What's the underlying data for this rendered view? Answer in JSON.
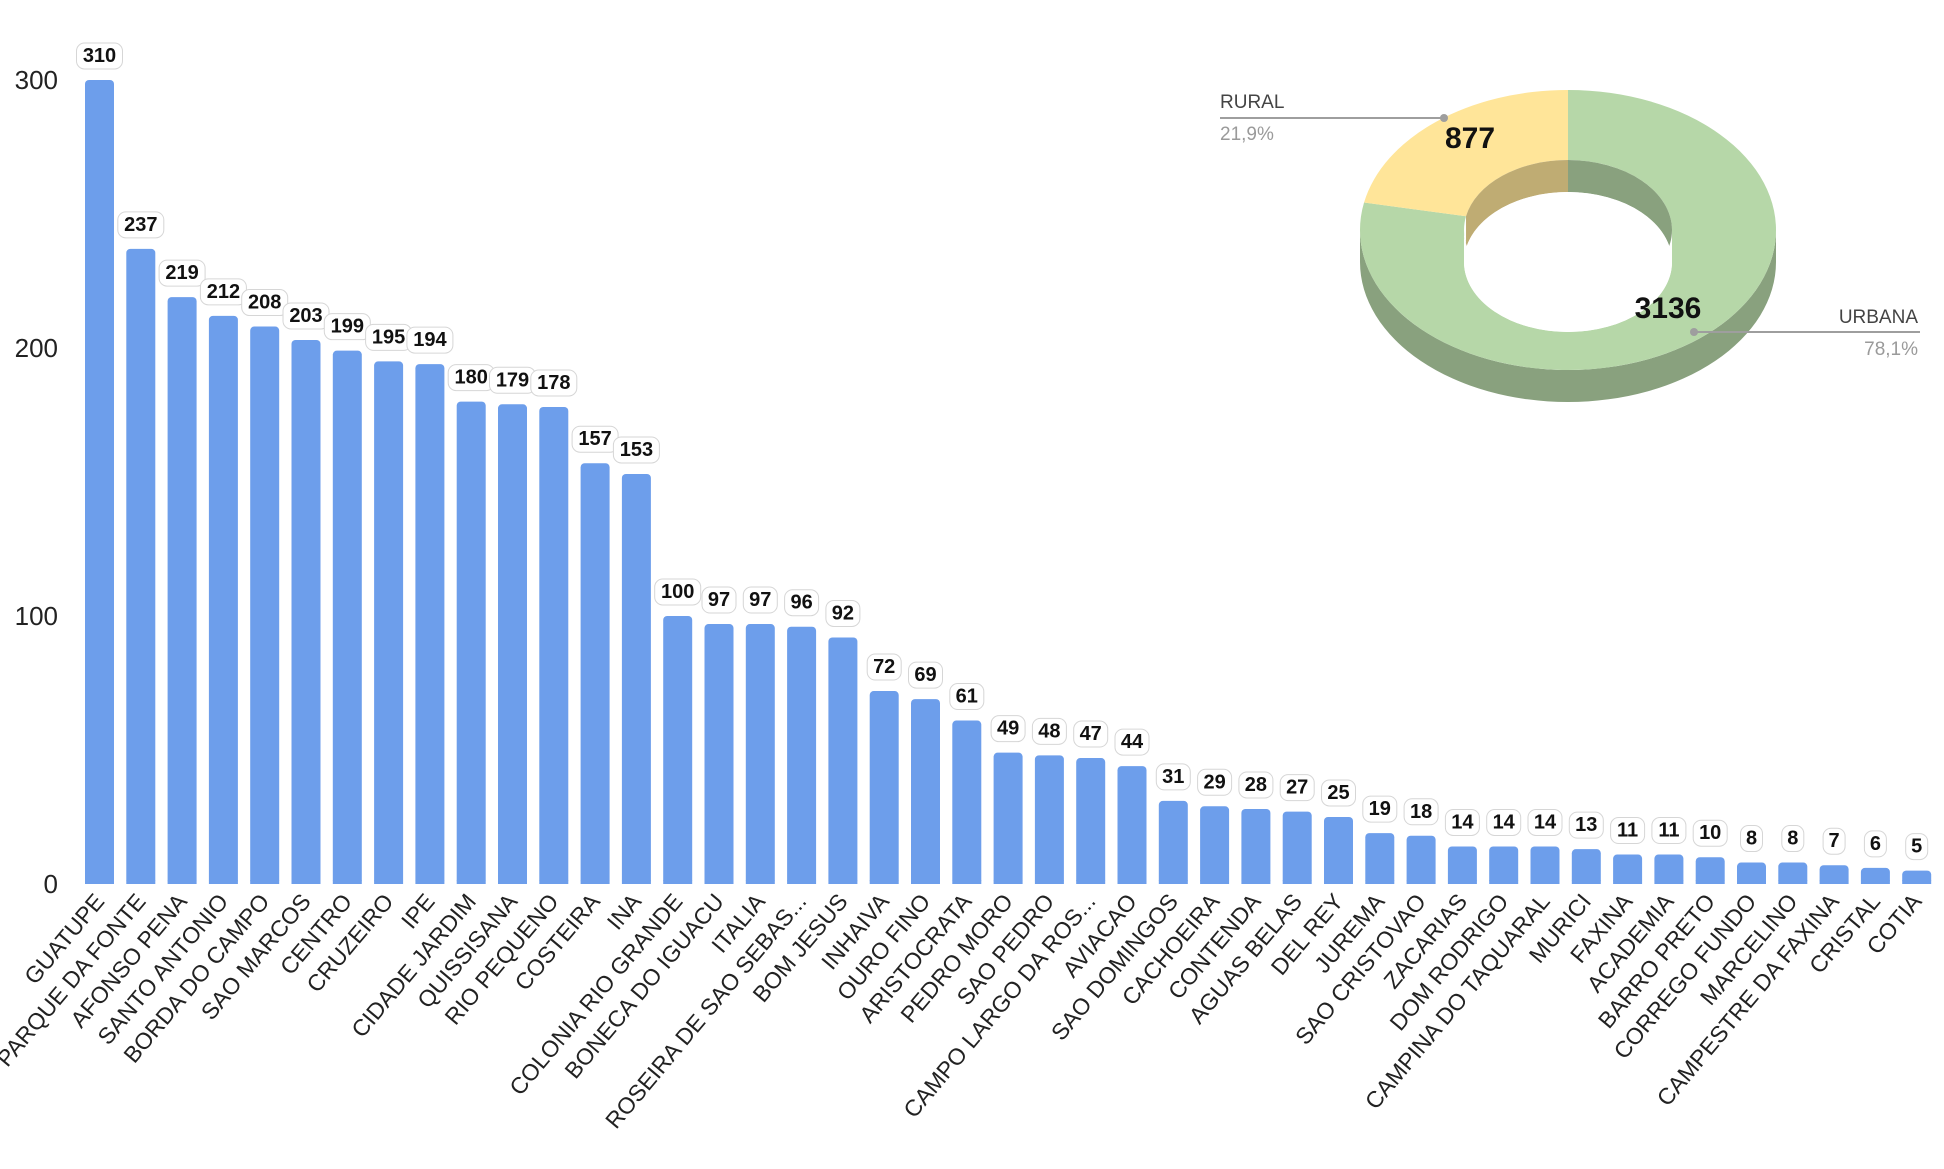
{
  "colors": {
    "bar": "#6d9eeb",
    "rural": "#ffe599",
    "rural_dark": "#bfac73",
    "urbana": "#b6d7a8",
    "urbana_dark": "#89a17e",
    "leader": "#9e9e9e"
  },
  "chart_data": [
    {
      "type": "bar",
      "ylim": [
        0,
        300
      ],
      "yticks": [
        0,
        100,
        200,
        300
      ],
      "grid": false,
      "categories": [
        "GUATUPE",
        "PARQUE DA FONTE",
        "AFONSO PENA",
        "SANTO ANTONIO",
        "BORDA DO CAMPO",
        "SAO MARCOS",
        "CENTRO",
        "CRUZEIRO",
        "IPE",
        "CIDADE JARDIM",
        "QUISSISANA",
        "RIO PEQUENO",
        "COSTEIRA",
        "INA",
        "COLONIA RIO GRANDE",
        "BONECA DO IGUACU",
        "ITALIA",
        "ROSEIRA DE SAO SEBAS...",
        "BOM JESUS",
        "INHAIVA",
        "OURO FINO",
        "ARISTOCRATA",
        "PEDRO MORO",
        "SAO PEDRO",
        "CAMPO LARGO DA ROS...",
        "AVIACAO",
        "SAO DOMINGOS",
        "CACHOEIRA",
        "CONTENDA",
        "AGUAS BELAS",
        "DEL REY",
        "JUREMA",
        "SAO CRISTOVAO",
        "ZACARIAS",
        "DOM RODRIGO",
        "CAMPINA DO TAQUARAL",
        "MURICI",
        "FAXINA",
        "ACADEMIA",
        "BARRO PRETO",
        "CORREGO FUNDO",
        "MARCELINO",
        "CAMPESTRE DA FAXINA",
        "CRISTAL",
        "COTIA"
      ],
      "values": [
        310,
        237,
        219,
        212,
        208,
        203,
        199,
        195,
        194,
        180,
        179,
        178,
        157,
        153,
        100,
        97,
        97,
        96,
        92,
        72,
        69,
        61,
        49,
        48,
        47,
        44,
        31,
        29,
        28,
        27,
        25,
        19,
        18,
        14,
        14,
        14,
        13,
        11,
        11,
        10,
        8,
        8,
        7,
        6,
        5
      ]
    },
    {
      "type": "pie",
      "style": "3d-donut",
      "slices": [
        {
          "name": "URBANA",
          "value": 3136,
          "percent_label": "78,1%"
        },
        {
          "name": "RURAL",
          "value": 877,
          "percent_label": "21,9%"
        }
      ]
    }
  ]
}
